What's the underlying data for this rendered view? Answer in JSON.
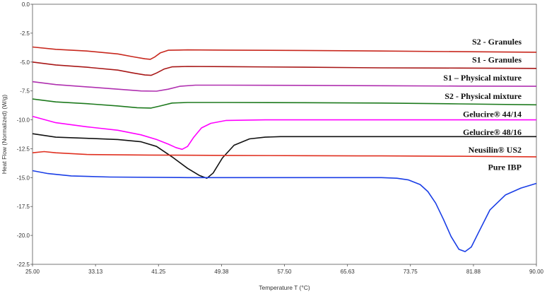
{
  "chart_data": {
    "type": "line",
    "title": "",
    "xlabel": "Temperature T (°C)",
    "ylabel": "Heat Flow (Normalized)  (W/g)",
    "xlim": [
      25.0,
      90.0
    ],
    "ylim": [
      -22.5,
      0.0
    ],
    "xticks": [
      "25.00",
      "33.13",
      "41.25",
      "49.38",
      "57.50",
      "65.63",
      "73.75",
      "81.88",
      "90.00"
    ],
    "yticks": [
      "0.0",
      "-2.5",
      "-5.0",
      "-7.5",
      "-10.0",
      "-12.5",
      "-15.0",
      "-17.5",
      "-20.0",
      "-22.5"
    ],
    "grid": false,
    "legend": "inline-right",
    "series": [
      {
        "name": "S2 - Granules",
        "color": "#c8281e",
        "x": [
          25,
          28,
          32,
          36,
          38,
          39.5,
          40.2,
          40.8,
          41.5,
          42.5,
          45,
          50,
          60,
          70,
          80,
          90
        ],
        "y": [
          -3.7,
          -3.9,
          -4.05,
          -4.3,
          -4.55,
          -4.72,
          -4.76,
          -4.55,
          -4.2,
          -3.98,
          -3.95,
          -3.97,
          -4.0,
          -4.05,
          -4.1,
          -4.15
        ]
      },
      {
        "name": "S1 - Granules",
        "color": "#a81818",
        "x": [
          25,
          28,
          32,
          36,
          38,
          39.5,
          40.3,
          41,
          42,
          43,
          45,
          50,
          60,
          70,
          80,
          90
        ],
        "y": [
          -5.0,
          -5.25,
          -5.45,
          -5.7,
          -5.95,
          -6.12,
          -6.15,
          -5.95,
          -5.6,
          -5.42,
          -5.38,
          -5.4,
          -5.45,
          -5.5,
          -5.52,
          -5.55
        ]
      },
      {
        "name": "S1 – Physical mixture",
        "color": "#b030b0",
        "x": [
          25,
          28,
          32,
          36,
          39,
          41,
          42.5,
          44,
          46,
          50,
          60,
          70,
          80,
          90
        ],
        "y": [
          -6.7,
          -6.95,
          -7.15,
          -7.35,
          -7.5,
          -7.52,
          -7.35,
          -7.1,
          -7.0,
          -7.0,
          -7.02,
          -7.05,
          -7.08,
          -7.1
        ]
      },
      {
        "name": "S2 - Physical mixture",
        "color": "#1e7a1e",
        "x": [
          25,
          28,
          32,
          36,
          38.5,
          40.3,
          41.5,
          43,
          45,
          50,
          60,
          70,
          80,
          90
        ],
        "y": [
          -8.2,
          -8.45,
          -8.6,
          -8.8,
          -8.95,
          -8.98,
          -8.8,
          -8.55,
          -8.5,
          -8.5,
          -8.52,
          -8.55,
          -8.62,
          -8.7
        ]
      },
      {
        "name": "Gelucire® 44/14",
        "color": "#ff00ff",
        "x": [
          25,
          28,
          32,
          36,
          39,
          41,
          42.5,
          43.5,
          44.3,
          45,
          45.8,
          46.8,
          48,
          50,
          55,
          60,
          70,
          80,
          90
        ],
        "y": [
          -9.7,
          -10.25,
          -10.6,
          -10.9,
          -11.3,
          -11.7,
          -12.1,
          -12.4,
          -12.55,
          -12.3,
          -11.5,
          -10.7,
          -10.3,
          -10.05,
          -10.0,
          -10.0,
          -10.0,
          -10.0,
          -10.0
        ]
      },
      {
        "name": "Gelucire® 48/16",
        "color": "#111111",
        "x": [
          25,
          28,
          32,
          36,
          39,
          41,
          43,
          45,
          46.5,
          47.5,
          48.3,
          49.5,
          51,
          53,
          55,
          57,
          60,
          70,
          80,
          90
        ],
        "y": [
          -11.2,
          -11.5,
          -11.6,
          -11.7,
          -11.9,
          -12.3,
          -13.2,
          -14.2,
          -14.8,
          -15.05,
          -14.6,
          -13.3,
          -12.2,
          -11.65,
          -11.5,
          -11.45,
          -11.45,
          -11.45,
          -11.45,
          -11.45
        ]
      },
      {
        "name": "Neusilin® US2",
        "color": "#e03020",
        "x": [
          25,
          26.5,
          28,
          32,
          40,
          50,
          60,
          70,
          80,
          90
        ],
        "y": [
          -12.85,
          -12.75,
          -12.85,
          -13.0,
          -13.05,
          -13.08,
          -13.1,
          -13.12,
          -13.15,
          -13.2
        ]
      },
      {
        "name": "Pure IBP",
        "color": "#1a3ee6",
        "x": [
          25,
          27,
          30,
          35,
          45,
          55,
          65,
          70,
          72,
          73.5,
          75,
          76,
          77,
          78,
          79,
          80,
          80.8,
          81.6,
          82.5,
          84,
          86,
          88,
          90
        ],
        "y": [
          -14.4,
          -14.65,
          -14.85,
          -14.95,
          -15.0,
          -15.0,
          -15.0,
          -15.0,
          -15.05,
          -15.2,
          -15.6,
          -16.2,
          -17.2,
          -18.6,
          -20.1,
          -21.2,
          -21.4,
          -21.0,
          -19.8,
          -17.8,
          -16.5,
          -15.9,
          -15.5
        ]
      }
    ],
    "labels": [
      {
        "text": "S2 - Granules",
        "y": -3.5
      },
      {
        "text": "S1 - Granules",
        "y": -5.05
      },
      {
        "text": "S1 – Physical mixture",
        "y": -6.6
      },
      {
        "text": "S2 - Physical mixture",
        "y": -8.2
      },
      {
        "text": "Gelucire® 44/14",
        "y": -9.75
      },
      {
        "text": "Gelucire® 48/16",
        "y": -11.3
      },
      {
        "text": "Neusilin® US2",
        "y": -12.85
      },
      {
        "text": "Pure IBP",
        "y": -14.35
      }
    ]
  }
}
